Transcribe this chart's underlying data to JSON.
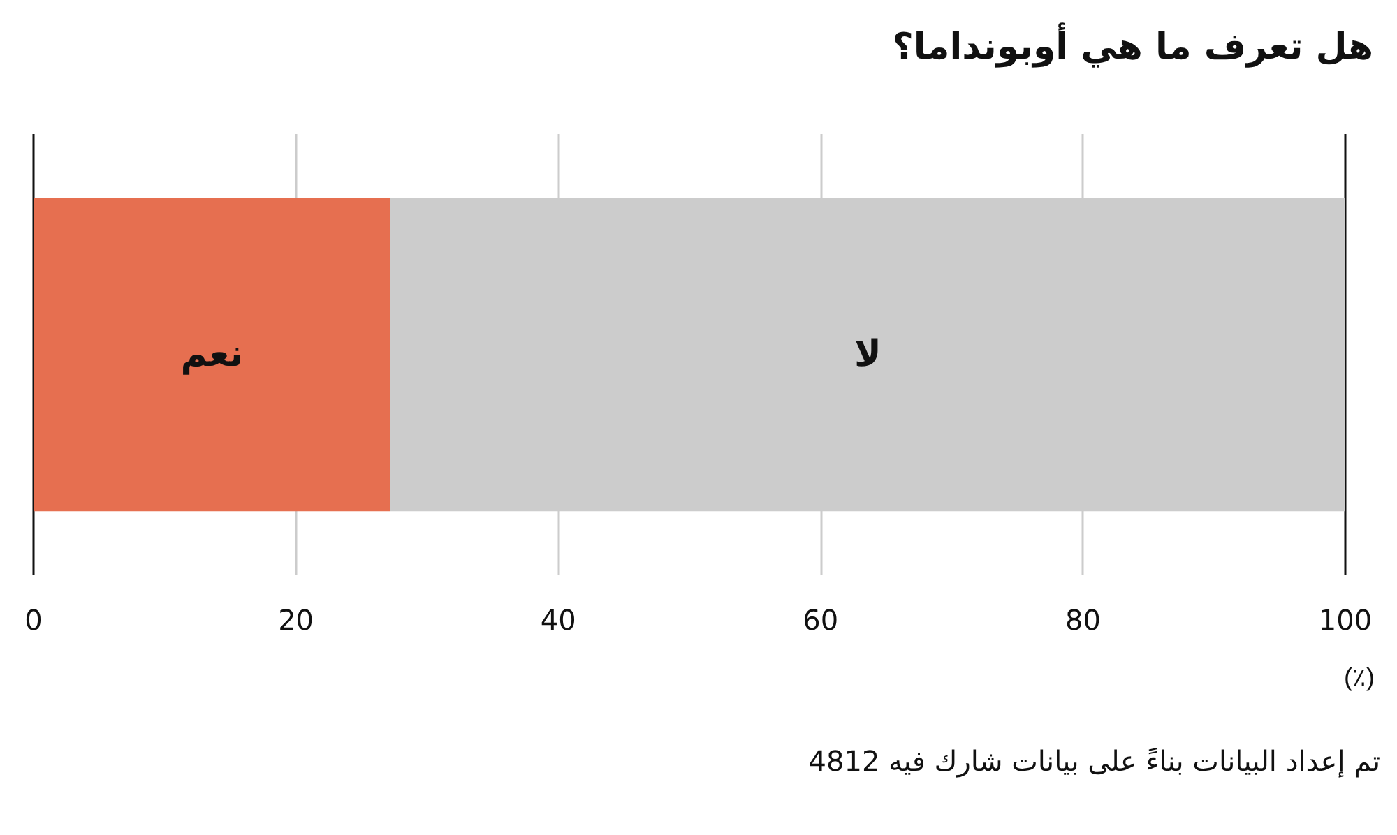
{
  "chart_data": {
    "type": "bar",
    "orientation": "horizontal",
    "stacked": true,
    "title": "هل تعرف ما هي أوبونداما؟",
    "xlabel": "(٪)",
    "annotations": [
      "تم إعداد البيانات بناءً على بيانات شارك فيه 4812"
    ],
    "categories": [
      null
    ],
    "series": [
      {
        "name": "نعم",
        "color": "#e66f50",
        "values": [
          27.2
        ]
      },
      {
        "name": "لا",
        "color": "#cccccc",
        "values": [
          72.8
        ]
      }
    ],
    "xlim": [
      0,
      100
    ],
    "xticks": [
      0,
      20,
      40,
      60,
      80,
      100
    ],
    "grid": "x",
    "legend": false
  }
}
